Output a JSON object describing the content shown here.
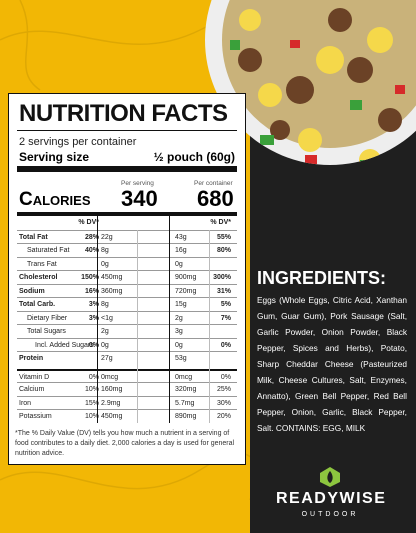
{
  "label": {
    "title": "NUTRITION FACTS",
    "servings": "2 servings per container",
    "serving_size_label": "Serving size",
    "serving_size": "½ pouch (60g)",
    "per_serving": "Per serving",
    "per_container": "Per container",
    "calories_label": "Calories",
    "calories_serving": "340",
    "calories_container": "680",
    "dv_header": "% DV*",
    "rows": [
      {
        "label": "Total Fat",
        "serving": "22g",
        "serving_dv": "28%",
        "container": "43g",
        "container_dv": "55%"
      },
      {
        "label": "Saturated Fat",
        "serving": "8g",
        "serving_dv": "40%",
        "container": "16g",
        "container_dv": "80%"
      },
      {
        "label": "Trans Fat",
        "serving": "0g",
        "serving_dv": null,
        "container": "0g",
        "container_dv": null
      },
      {
        "label": "Cholesterol",
        "serving": "450mg",
        "serving_dv": "150%",
        "container": "900mg",
        "container_dv": "300%"
      },
      {
        "label": "Sodium",
        "serving": "360mg",
        "serving_dv": "16%",
        "container": "720mg",
        "container_dv": "31%"
      },
      {
        "label": "Total Carb.",
        "serving": "8g",
        "serving_dv": "3%",
        "container": "15g",
        "container_dv": "5%"
      },
      {
        "label": "Dietary Fiber",
        "serving": "<1g",
        "serving_dv": "3%",
        "container": "2g",
        "container_dv": "7%"
      },
      {
        "label": "Total Sugars",
        "serving": "2g",
        "serving_dv": null,
        "container": "3g",
        "container_dv": null
      },
      {
        "label": "Incl. Added Sugars",
        "serving": "0g",
        "serving_dv": "0%",
        "container": "0g",
        "container_dv": "0%"
      },
      {
        "label": "Protein",
        "serving": "27g",
        "serving_dv": null,
        "container": "53g",
        "container_dv": null
      },
      {
        "label": "Vitamin D",
        "serving": "0mcg",
        "serving_dv": "0%",
        "container": "0mcg",
        "container_dv": "0%"
      },
      {
        "label": "Calcium",
        "serving": "160mg",
        "serving_dv": "10%",
        "container": "320mg",
        "container_dv": "25%"
      },
      {
        "label": "Iron",
        "serving": "2.9mg",
        "serving_dv": "15%",
        "container": "5.7mg",
        "container_dv": "30%"
      },
      {
        "label": "Potassium",
        "serving": "450mg",
        "serving_dv": "10%",
        "container": "890mg",
        "container_dv": "20%"
      }
    ],
    "footnote": "*The % Daily Value (DV) tells you how much a nutrient in a serving of food contributes to a daily diet. 2,000 calories a day is used for general nutrition advice."
  },
  "ingredients": {
    "title": "INGREDIENTS:",
    "text": "Eggs (Whole Eggs, Citric Acid, Xanthan Gum, Guar Gum), Pork Sausage (Salt, Garlic Powder, Onion Powder, Black Pepper, Spices and Herbs), Potato, Sharp Cheddar Cheese (Pasteurized Milk, Cheese Cultures, Salt, Enzymes, Annatto), Green Bell Pepper, Red Bell Pepper, Onion, Garlic, Black Pepper, Salt. CONTAINS: EGG, MILK"
  },
  "brand": {
    "name": "READYWISE",
    "tagline": "OUTDOOR"
  }
}
